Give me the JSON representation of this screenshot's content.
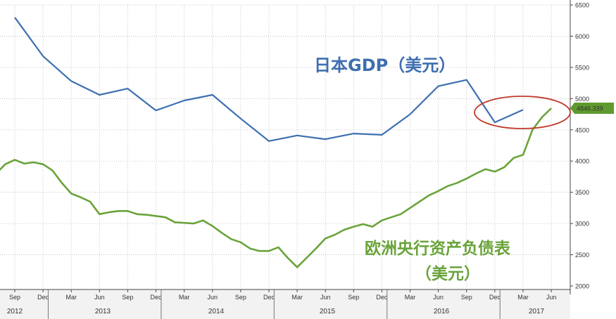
{
  "chart_data": {
    "type": "line",
    "title": "",
    "xlabel": "",
    "ylabel": "",
    "ylim": [
      2000,
      6500
    ],
    "y_axis_position": "right",
    "y_ticks": [
      "2000",
      "2500",
      "3000",
      "3500",
      "4000",
      "4500",
      "5000",
      "5500",
      "6000",
      "6500"
    ],
    "x_month_ticks": [
      "Sep",
      "Dec",
      "Mar",
      "Jun",
      "Sep",
      "Dec",
      "Mar",
      "Jun",
      "Sep",
      "Dec",
      "Mar",
      "Jun",
      "Sep",
      "Dec",
      "Mar",
      "Jun",
      "Sep",
      "Dec",
      "Mar",
      "Jun"
    ],
    "x_year_labels": [
      "2012",
      "2013",
      "2014",
      "2015",
      "2016",
      "2017"
    ],
    "grid": true,
    "series": [
      {
        "name": "日本GDP（美元）",
        "color": "#3e6fb0",
        "x": [
          "2012-09",
          "2012-12",
          "2013-03",
          "2013-06",
          "2013-09",
          "2013-12",
          "2014-03",
          "2014-06",
          "2014-09",
          "2014-12",
          "2015-03",
          "2015-06",
          "2015-09",
          "2015-12",
          "2016-03",
          "2016-06",
          "2016-09",
          "2016-12",
          "2017-03"
        ],
        "values": [
          6300,
          5680,
          5280,
          5060,
          5160,
          4810,
          4970,
          5060,
          4680,
          4320,
          4410,
          4350,
          4440,
          4420,
          4750,
          5200,
          5300,
          4620,
          4820
        ]
      },
      {
        "name": "欧洲央行资产负债表（美元）",
        "color": "#6aa33a",
        "x": [
          "2012-07",
          "2012-08",
          "2012-09",
          "2012-10",
          "2012-11",
          "2012-12",
          "2013-01",
          "2013-02",
          "2013-03",
          "2013-04",
          "2013-05",
          "2013-06",
          "2013-07",
          "2013-08",
          "2013-09",
          "2013-10",
          "2013-11",
          "2013-12",
          "2014-01",
          "2014-02",
          "2014-03",
          "2014-04",
          "2014-05",
          "2014-06",
          "2014-07",
          "2014-08",
          "2014-09",
          "2014-10",
          "2014-11",
          "2014-12",
          "2015-01",
          "2015-02",
          "2015-03",
          "2015-04",
          "2015-05",
          "2015-06",
          "2015-07",
          "2015-08",
          "2015-09",
          "2015-10",
          "2015-11",
          "2015-12",
          "2016-01",
          "2016-02",
          "2016-03",
          "2016-04",
          "2016-05",
          "2016-06",
          "2016-07",
          "2016-08",
          "2016-09",
          "2016-10",
          "2016-11",
          "2016-12",
          "2017-01",
          "2017-02",
          "2017-03",
          "2017-04",
          "2017-05",
          "2017-06"
        ],
        "values": [
          3800,
          3950,
          4020,
          3960,
          3980,
          3950,
          3850,
          3650,
          3480,
          3420,
          3350,
          3150,
          3180,
          3200,
          3200,
          3150,
          3140,
          3120,
          3100,
          3020,
          3010,
          3000,
          3050,
          2960,
          2850,
          2750,
          2700,
          2600,
          2560,
          2560,
          2620,
          2450,
          2300,
          2450,
          2600,
          2760,
          2820,
          2900,
          2950,
          2990,
          2950,
          3050,
          3100,
          3150,
          3250,
          3350,
          3450,
          3520,
          3600,
          3650,
          3720,
          3800,
          3870,
          3830,
          3900,
          4050,
          4100,
          4500,
          4700,
          4846.339
        ]
      }
    ],
    "last_value_label": "4846.339",
    "annotations": [
      "日本GDP（美元）",
      "欧洲央行资产负债表",
      "（美元）"
    ]
  }
}
